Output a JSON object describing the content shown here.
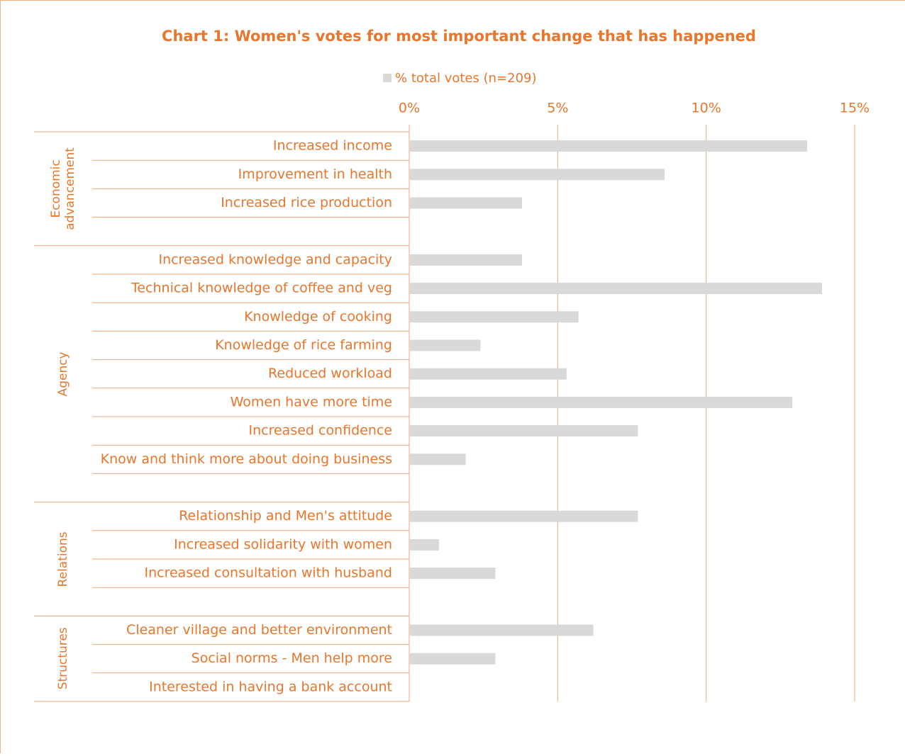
{
  "chart_data": {
    "type": "bar",
    "orientation": "horizontal",
    "title": "Chart 1: Women's votes for most important change that has happened",
    "legend": {
      "name": "% total votes (n=209)",
      "color": "#d9d9d9"
    },
    "xlim": [
      0,
      15
    ],
    "xticks": [
      {
        "value": 0,
        "label": "0%"
      },
      {
        "value": 5,
        "label": "5%"
      },
      {
        "value": 10,
        "label": "10%"
      },
      {
        "value": 15,
        "label": "15%"
      }
    ],
    "grid": true,
    "groups": [
      {
        "name": "Economic advancement",
        "categories": [
          "Increased income",
          "Improvement in health",
          "Increased rice production",
          null
        ],
        "values": [
          13.4,
          8.6,
          3.8,
          null
        ]
      },
      {
        "name": "Agency",
        "categories": [
          "Increased knowledge and capacity",
          "Technical knowledge of coffee and veg",
          "Knowledge of cooking",
          "Knowledge of rice farming",
          "Reduced workload ",
          "Women have more time",
          "Increased confidence",
          "Know and think more about doing business",
          null
        ],
        "values": [
          3.8,
          13.9,
          5.7,
          2.4,
          5.3,
          12.9,
          7.7,
          1.9,
          null
        ]
      },
      {
        "name": "Relations",
        "categories": [
          "Relationship and Men's attitude ",
          "Increased solidarity with women",
          "Increased consultation with husband",
          null
        ],
        "values": [
          7.7,
          1.0,
          2.9,
          null
        ]
      },
      {
        "name": "Structures",
        "categories": [
          "Cleaner village and better environment",
          "Social norms - Men help more",
          "Interested in having a bank account"
        ],
        "values": [
          6.2,
          2.9,
          0
        ]
      }
    ]
  }
}
